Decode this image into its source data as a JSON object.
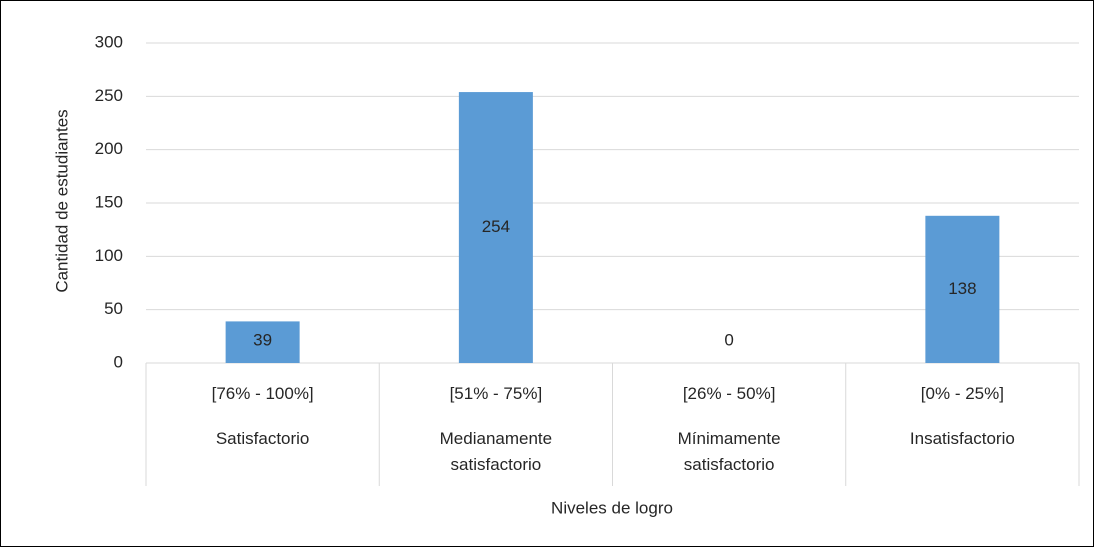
{
  "chart_data": {
    "type": "bar",
    "y_axis_label": "Cantidad de estudiantes",
    "x_axis_label": "Niveles de logro",
    "categories": [
      "[76% - 100%]",
      "[51% - 75%]",
      "[26% - 50%]",
      "[0% - 25%]"
    ],
    "category_groups": [
      "Satisfactorio",
      "Medianamente satisfactorio",
      "Mínimamente satisfactorio",
      "Insatisfactorio"
    ],
    "values": [
      39,
      254,
      0,
      138
    ],
    "color": "#5b9bd5",
    "ylim": [
      0,
      300
    ],
    "yticks": [
      0,
      50,
      100,
      150,
      200,
      250,
      300
    ],
    "grid": true
  }
}
